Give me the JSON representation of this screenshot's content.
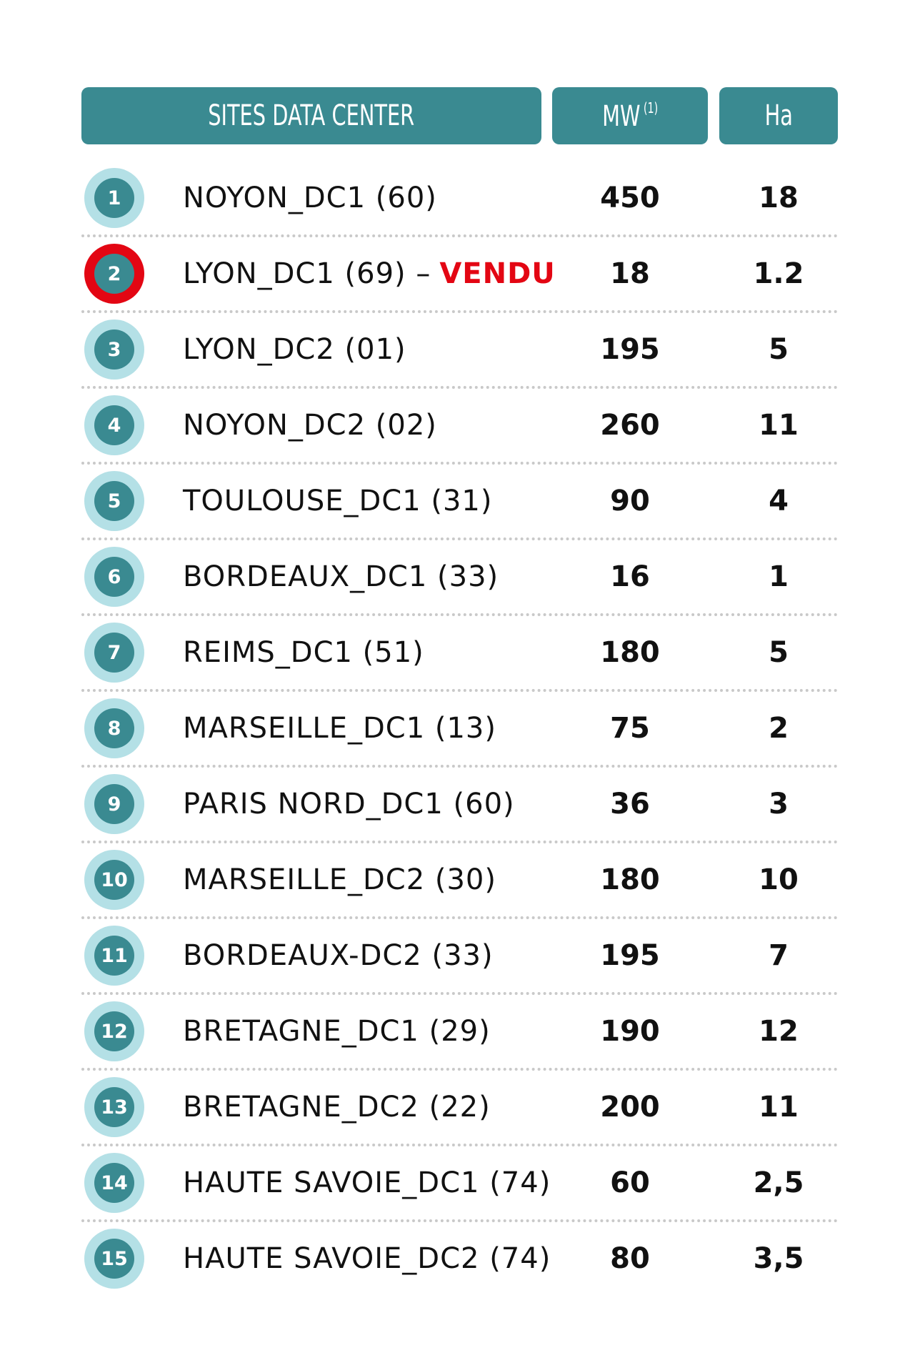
{
  "header": {
    "site_label": "SITES DATA CENTER",
    "mw_label": "MW",
    "mw_note": "(1)",
    "ha_label": "Ha"
  },
  "colors": {
    "teal": "#3a8a91",
    "light_teal": "#b4e0e6",
    "red": "#e30613"
  },
  "rows": [
    {
      "num": "1",
      "site": "NOYON_DC1 (60)",
      "status": "",
      "mw": "450",
      "ha": "18"
    },
    {
      "num": "2",
      "site": "LYON_DC1 (69) –",
      "status": "VENDU",
      "mw": "18",
      "ha": "1.2"
    },
    {
      "num": "3",
      "site": "LYON_DC2 (01)",
      "status": "",
      "mw": "195",
      "ha": "5"
    },
    {
      "num": "4",
      "site": "NOYON_DC2 (02)",
      "status": "",
      "mw": "260",
      "ha": "11"
    },
    {
      "num": "5",
      "site": "TOULOUSE_DC1 (31)",
      "status": "",
      "mw": "90",
      "ha": "4"
    },
    {
      "num": "6",
      "site": "BORDEAUX_DC1 (33)",
      "status": "",
      "mw": "16",
      "ha": "1"
    },
    {
      "num": "7",
      "site": "REIMS_DC1 (51)",
      "status": "",
      "mw": "180",
      "ha": "5"
    },
    {
      "num": "8",
      "site": "MARSEILLE_DC1 (13)",
      "status": "",
      "mw": "75",
      "ha": "2"
    },
    {
      "num": "9",
      "site": "PARIS NORD_DC1 (60)",
      "status": "",
      "mw": "36",
      "ha": "3"
    },
    {
      "num": "10",
      "site": "MARSEILLE_DC2 (30)",
      "status": "",
      "mw": "180",
      "ha": "10"
    },
    {
      "num": "11",
      "site": "BORDEAUX-DC2 (33)",
      "status": "",
      "mw": "195",
      "ha": "7"
    },
    {
      "num": "12",
      "site": "BRETAGNE_DC1 (29)",
      "status": "",
      "mw": "190",
      "ha": "12"
    },
    {
      "num": "13",
      "site": "BRETAGNE_DC2 (22)",
      "status": "",
      "mw": "200",
      "ha": "11"
    },
    {
      "num": "14",
      "site": "HAUTE SAVOIE_DC1 (74)",
      "status": "",
      "mw": "60",
      "ha": "2,5"
    },
    {
      "num": "15",
      "site": "HAUTE SAVOIE_DC2 (74)",
      "status": "",
      "mw": "80",
      "ha": "3,5"
    }
  ]
}
